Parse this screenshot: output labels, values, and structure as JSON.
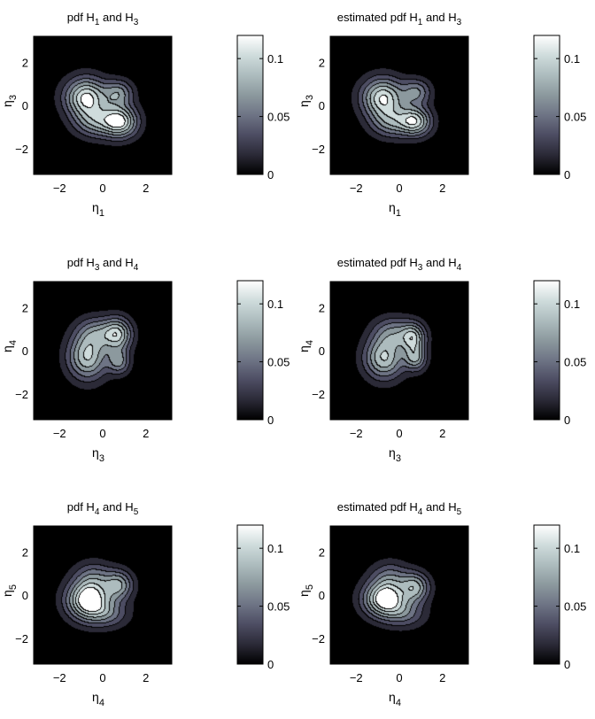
{
  "figure": {
    "colormap": [
      "#000000",
      "#2b2a37",
      "#4d4d63",
      "#6e7485",
      "#8c999e",
      "#adbcbe",
      "#cfdcdc",
      "#ffffff"
    ]
  },
  "chart_data": [
    {
      "type": "heatmap",
      "plot_kind": "filled contour density",
      "title_parts": [
        "pdf H",
        "1",
        " and H",
        "3"
      ],
      "xlabel": "η",
      "xlabel_sub": "1",
      "ylabel": "η",
      "ylabel_sub": "3",
      "xlim": [
        -3.2,
        3.2
      ],
      "ylim": [
        -3.2,
        3.2
      ],
      "xticks": [
        -2,
        0,
        2
      ],
      "yticks": [
        -2,
        0,
        2
      ],
      "colorbar": {
        "range": [
          0,
          0.12
        ],
        "ticks": [
          0,
          0.05,
          0.1
        ],
        "tick_labels": [
          "0",
          "0.05",
          "0.1"
        ]
      },
      "contour_levels": [
        0.008,
        0.022,
        0.038,
        0.055,
        0.072,
        0.09,
        0.106
      ],
      "components": [
        {
          "x": -0.75,
          "y": 0.35,
          "sx": 0.65,
          "sy": 0.6,
          "w": 0.11
        },
        {
          "x": 0.75,
          "y": 0.55,
          "sx": 0.45,
          "sy": 0.4,
          "w": 0.06
        },
        {
          "x": 0.8,
          "y": -0.75,
          "sx": 0.55,
          "sy": 0.5,
          "w": 0.11
        },
        {
          "x": -0.35,
          "y": -0.75,
          "sx": 0.65,
          "sy": 0.5,
          "w": 0.06
        }
      ]
    },
    {
      "type": "heatmap",
      "plot_kind": "filled contour density",
      "title_parts": [
        "estimated pdf H",
        "1",
        " and H",
        "3"
      ],
      "xlabel": "η",
      "xlabel_sub": "1",
      "ylabel": "η",
      "ylabel_sub": "3",
      "xlim": [
        -3.2,
        3.2
      ],
      "ylim": [
        -3.2,
        3.2
      ],
      "xticks": [
        -2,
        0,
        2
      ],
      "yticks": [
        -2,
        0,
        2
      ],
      "colorbar": {
        "range": [
          0,
          0.12
        ],
        "ticks": [
          0,
          0.05,
          0.1
        ],
        "tick_labels": [
          "0",
          "0.05",
          "0.1"
        ]
      },
      "contour_levels": [
        0.008,
        0.022,
        0.038,
        0.055,
        0.072,
        0.09,
        0.106
      ],
      "components": [
        {
          "x": -0.75,
          "y": 0.35,
          "sx": 0.65,
          "sy": 0.6,
          "w": 0.105
        },
        {
          "x": 0.8,
          "y": 0.6,
          "sx": 0.45,
          "sy": 0.4,
          "w": 0.055
        },
        {
          "x": 0.75,
          "y": -0.75,
          "sx": 0.5,
          "sy": 0.45,
          "w": 0.095
        },
        {
          "x": -0.35,
          "y": -0.75,
          "sx": 0.65,
          "sy": 0.5,
          "w": 0.06
        }
      ]
    },
    {
      "type": "heatmap",
      "plot_kind": "filled contour density",
      "title_parts": [
        "pdf H",
        "3",
        " and H",
        "4"
      ],
      "xlabel": "η",
      "xlabel_sub": "3",
      "ylabel": "η",
      "ylabel_sub": "4",
      "xlim": [
        -3.2,
        3.2
      ],
      "ylim": [
        -3.2,
        3.2
      ],
      "xticks": [
        -2,
        0,
        2
      ],
      "yticks": [
        -2,
        0,
        2
      ],
      "colorbar": {
        "range": [
          0,
          0.12
        ],
        "ticks": [
          0,
          0.05,
          0.1
        ],
        "tick_labels": [
          "0",
          "0.05",
          "0.1"
        ]
      },
      "contour_levels": [
        0.008,
        0.022,
        0.038,
        0.055,
        0.072,
        0.09,
        0.106
      ],
      "components": [
        {
          "x": -0.7,
          "y": -0.3,
          "sx": 0.6,
          "sy": 0.7,
          "w": 0.09
        },
        {
          "x": 0.7,
          "y": 0.75,
          "sx": 0.45,
          "sy": 0.5,
          "w": 0.09
        },
        {
          "x": 0.75,
          "y": -0.5,
          "sx": 0.35,
          "sy": 0.4,
          "w": 0.06
        },
        {
          "x": -0.3,
          "y": 0.8,
          "sx": 0.6,
          "sy": 0.5,
          "w": 0.05
        }
      ]
    },
    {
      "type": "heatmap",
      "plot_kind": "filled contour density",
      "title_parts": [
        "estimated pdf H",
        "3",
        " and H",
        "4"
      ],
      "xlabel": "η",
      "xlabel_sub": "3",
      "ylabel": "η",
      "ylabel_sub": "4",
      "xlim": [
        -3.2,
        3.2
      ],
      "ylim": [
        -3.2,
        3.2
      ],
      "xticks": [
        -2,
        0,
        2
      ],
      "yticks": [
        -2,
        0,
        2
      ],
      "colorbar": {
        "range": [
          0,
          0.12
        ],
        "ticks": [
          0,
          0.05,
          0.1
        ],
        "tick_labels": [
          "0",
          "0.05",
          "0.1"
        ]
      },
      "contour_levels": [
        0.008,
        0.022,
        0.038,
        0.055,
        0.072,
        0.09,
        0.106
      ],
      "components": [
        {
          "x": -0.7,
          "y": -0.35,
          "sx": 0.6,
          "sy": 0.65,
          "w": 0.09
        },
        {
          "x": 0.65,
          "y": 0.6,
          "sx": 0.4,
          "sy": 0.45,
          "w": 0.085
        },
        {
          "x": 0.75,
          "y": -0.35,
          "sx": 0.35,
          "sy": 0.4,
          "w": 0.07
        },
        {
          "x": -0.3,
          "y": 0.8,
          "sx": 0.6,
          "sy": 0.5,
          "w": 0.05
        }
      ]
    },
    {
      "type": "heatmap",
      "plot_kind": "filled contour density",
      "title_parts": [
        "pdf H",
        "4",
        " and H",
        "5"
      ],
      "xlabel": "η",
      "xlabel_sub": "4",
      "ylabel": "η",
      "ylabel_sub": "5",
      "xlim": [
        -3.2,
        3.2
      ],
      "ylim": [
        -3.2,
        3.2
      ],
      "xticks": [
        -2,
        0,
        2
      ],
      "yticks": [
        -2,
        0,
        2
      ],
      "colorbar": {
        "range": [
          0,
          0.12
        ],
        "ticks": [
          0,
          0.05,
          0.1
        ],
        "tick_labels": [
          "0",
          "0.05",
          "0.1"
        ]
      },
      "contour_levels": [
        0.008,
        0.022,
        0.038,
        0.055,
        0.072,
        0.09,
        0.106
      ],
      "components": [
        {
          "x": -0.65,
          "y": -0.25,
          "sx": 0.65,
          "sy": 0.6,
          "w": 0.13
        },
        {
          "x": 0.75,
          "y": 0.45,
          "sx": 0.45,
          "sy": 0.45,
          "w": 0.07
        },
        {
          "x": 0.25,
          "y": -0.85,
          "sx": 0.65,
          "sy": 0.45,
          "w": 0.04
        },
        {
          "x": -0.4,
          "y": 0.8,
          "sx": 0.6,
          "sy": 0.5,
          "w": 0.04
        }
      ]
    },
    {
      "type": "heatmap",
      "plot_kind": "filled contour density",
      "title_parts": [
        "estimated pdf H",
        "4",
        " and H",
        "5"
      ],
      "xlabel": "η",
      "xlabel_sub": "4",
      "ylabel": "η",
      "ylabel_sub": "5",
      "xlim": [
        -3.2,
        3.2
      ],
      "ylim": [
        -3.2,
        3.2
      ],
      "xticks": [
        -2,
        0,
        2
      ],
      "yticks": [
        -2,
        0,
        2
      ],
      "colorbar": {
        "range": [
          0,
          0.12
        ],
        "ticks": [
          0,
          0.05,
          0.1
        ],
        "tick_labels": [
          "0",
          "0.05",
          "0.1"
        ]
      },
      "contour_levels": [
        0.008,
        0.022,
        0.038,
        0.055,
        0.072,
        0.09,
        0.106
      ],
      "components": [
        {
          "x": -0.65,
          "y": -0.2,
          "sx": 0.65,
          "sy": 0.55,
          "w": 0.125
        },
        {
          "x": 0.75,
          "y": 0.35,
          "sx": 0.45,
          "sy": 0.45,
          "w": 0.075
        },
        {
          "x": 0.25,
          "y": -0.85,
          "sx": 0.65,
          "sy": 0.45,
          "w": 0.04
        },
        {
          "x": -0.4,
          "y": 0.8,
          "sx": 0.6,
          "sy": 0.5,
          "w": 0.04
        }
      ]
    }
  ]
}
